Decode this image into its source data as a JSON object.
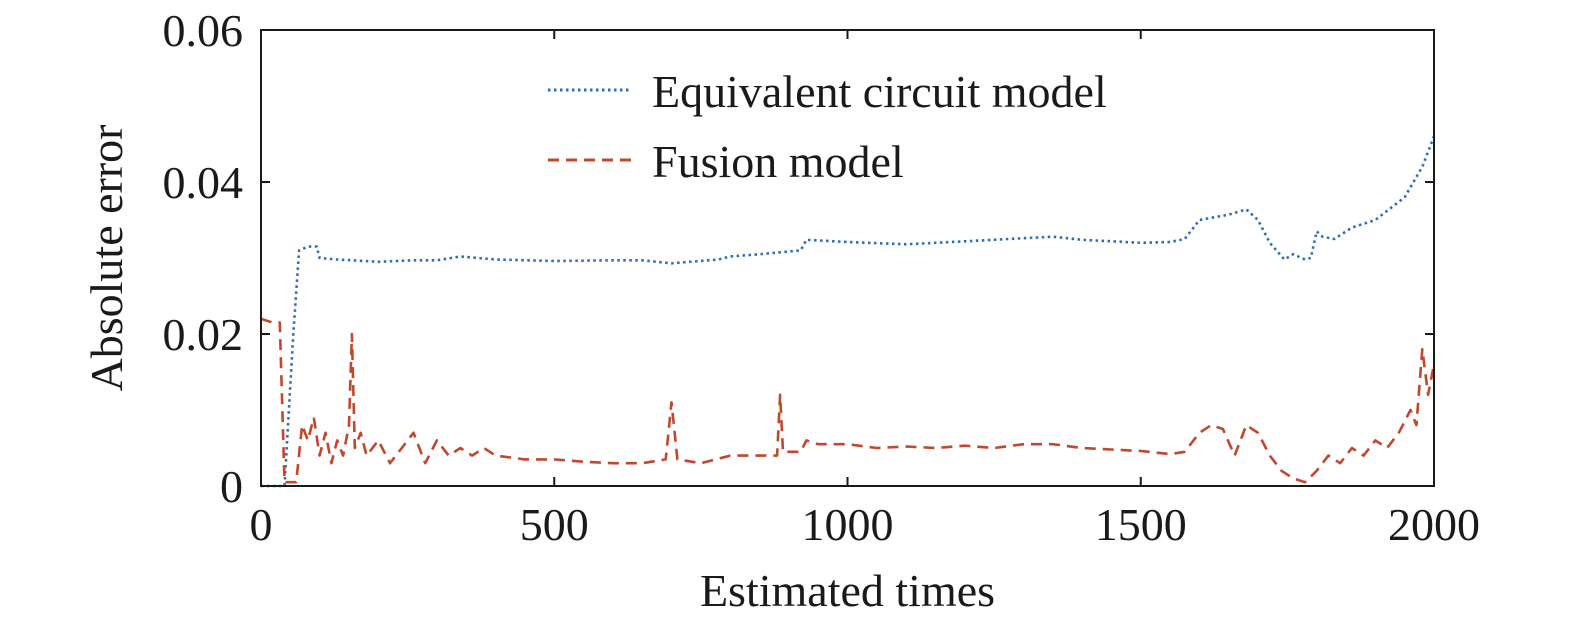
{
  "chart_data": {
    "type": "line",
    "title": "",
    "xlabel": "Estimated times",
    "ylabel": "Absolute error",
    "xlim": [
      0,
      2000
    ],
    "ylim": [
      0,
      0.06
    ],
    "xticks": [
      0,
      500,
      1000,
      1500,
      2000
    ],
    "xtick_labels": [
      "0",
      "500",
      "1000",
      "1500",
      "2000"
    ],
    "yticks": [
      0,
      0.02,
      0.04,
      0.06
    ],
    "ytick_labels": [
      "0",
      "0.02",
      "0.04",
      "0.06"
    ],
    "grid": false,
    "legend_position": "top-center",
    "series": [
      {
        "name": "Equivalent circuit model",
        "style": "dotted",
        "color": "#2e6db4",
        "x": [
          0,
          20,
          40,
          55,
          65,
          80,
          95,
          100,
          130,
          200,
          260,
          300,
          340,
          400,
          500,
          600,
          650,
          700,
          780,
          800,
          850,
          920,
          930,
          1000,
          1100,
          1200,
          1300,
          1350,
          1400,
          1500,
          1550,
          1575,
          1600,
          1650,
          1680,
          1700,
          1720,
          1745,
          1760,
          1780,
          1790,
          1800,
          1810,
          1830,
          1860,
          1900,
          1950,
          1980,
          2000
        ],
        "y": [
          0.0,
          0.0,
          0.0,
          0.02,
          0.031,
          0.0315,
          0.0315,
          0.03,
          0.0298,
          0.0295,
          0.0297,
          0.0297,
          0.0302,
          0.0298,
          0.0296,
          0.0297,
          0.0297,
          0.0293,
          0.0298,
          0.0302,
          0.0305,
          0.031,
          0.0324,
          0.0321,
          0.0318,
          0.0322,
          0.0326,
          0.0328,
          0.0324,
          0.032,
          0.0321,
          0.0325,
          0.035,
          0.0357,
          0.0364,
          0.035,
          0.032,
          0.0298,
          0.0305,
          0.0298,
          0.03,
          0.0335,
          0.0328,
          0.0325,
          0.034,
          0.035,
          0.038,
          0.042,
          0.046
        ]
      },
      {
        "name": "Fusion model",
        "style": "dashed",
        "color": "#c0482c",
        "x": [
          0,
          20,
          30,
          32,
          40,
          50,
          60,
          70,
          80,
          90,
          100,
          110,
          120,
          130,
          140,
          150,
          155,
          160,
          170,
          180,
          200,
          220,
          240,
          260,
          280,
          300,
          320,
          340,
          360,
          380,
          400,
          450,
          500,
          550,
          600,
          650,
          690,
          700,
          710,
          750,
          800,
          850,
          880,
          885,
          890,
          920,
          930,
          950,
          1000,
          1050,
          1100,
          1150,
          1200,
          1250,
          1300,
          1350,
          1400,
          1450,
          1500,
          1550,
          1575,
          1600,
          1620,
          1640,
          1660,
          1680,
          1700,
          1720,
          1740,
          1760,
          1780,
          1800,
          1820,
          1840,
          1860,
          1880,
          1900,
          1920,
          1940,
          1960,
          1970,
          1980,
          1990,
          2000
        ],
        "y": [
          0.022,
          0.0215,
          0.0215,
          0.0215,
          0.0005,
          0.0005,
          0.0005,
          0.008,
          0.006,
          0.009,
          0.004,
          0.007,
          0.003,
          0.006,
          0.004,
          0.008,
          0.02,
          0.005,
          0.007,
          0.004,
          0.006,
          0.003,
          0.005,
          0.007,
          0.003,
          0.006,
          0.004,
          0.005,
          0.004,
          0.005,
          0.004,
          0.0035,
          0.0035,
          0.0032,
          0.003,
          0.003,
          0.0035,
          0.011,
          0.0035,
          0.003,
          0.004,
          0.004,
          0.004,
          0.012,
          0.0045,
          0.0045,
          0.006,
          0.0055,
          0.0055,
          0.005,
          0.0052,
          0.005,
          0.0053,
          0.005,
          0.0055,
          0.0055,
          0.005,
          0.0048,
          0.0046,
          0.0042,
          0.0045,
          0.007,
          0.008,
          0.0075,
          0.004,
          0.008,
          0.007,
          0.004,
          0.002,
          0.001,
          0.0005,
          0.002,
          0.004,
          0.003,
          0.005,
          0.004,
          0.006,
          0.005,
          0.007,
          0.01,
          0.008,
          0.018,
          0.012,
          0.016
        ]
      }
    ]
  }
}
